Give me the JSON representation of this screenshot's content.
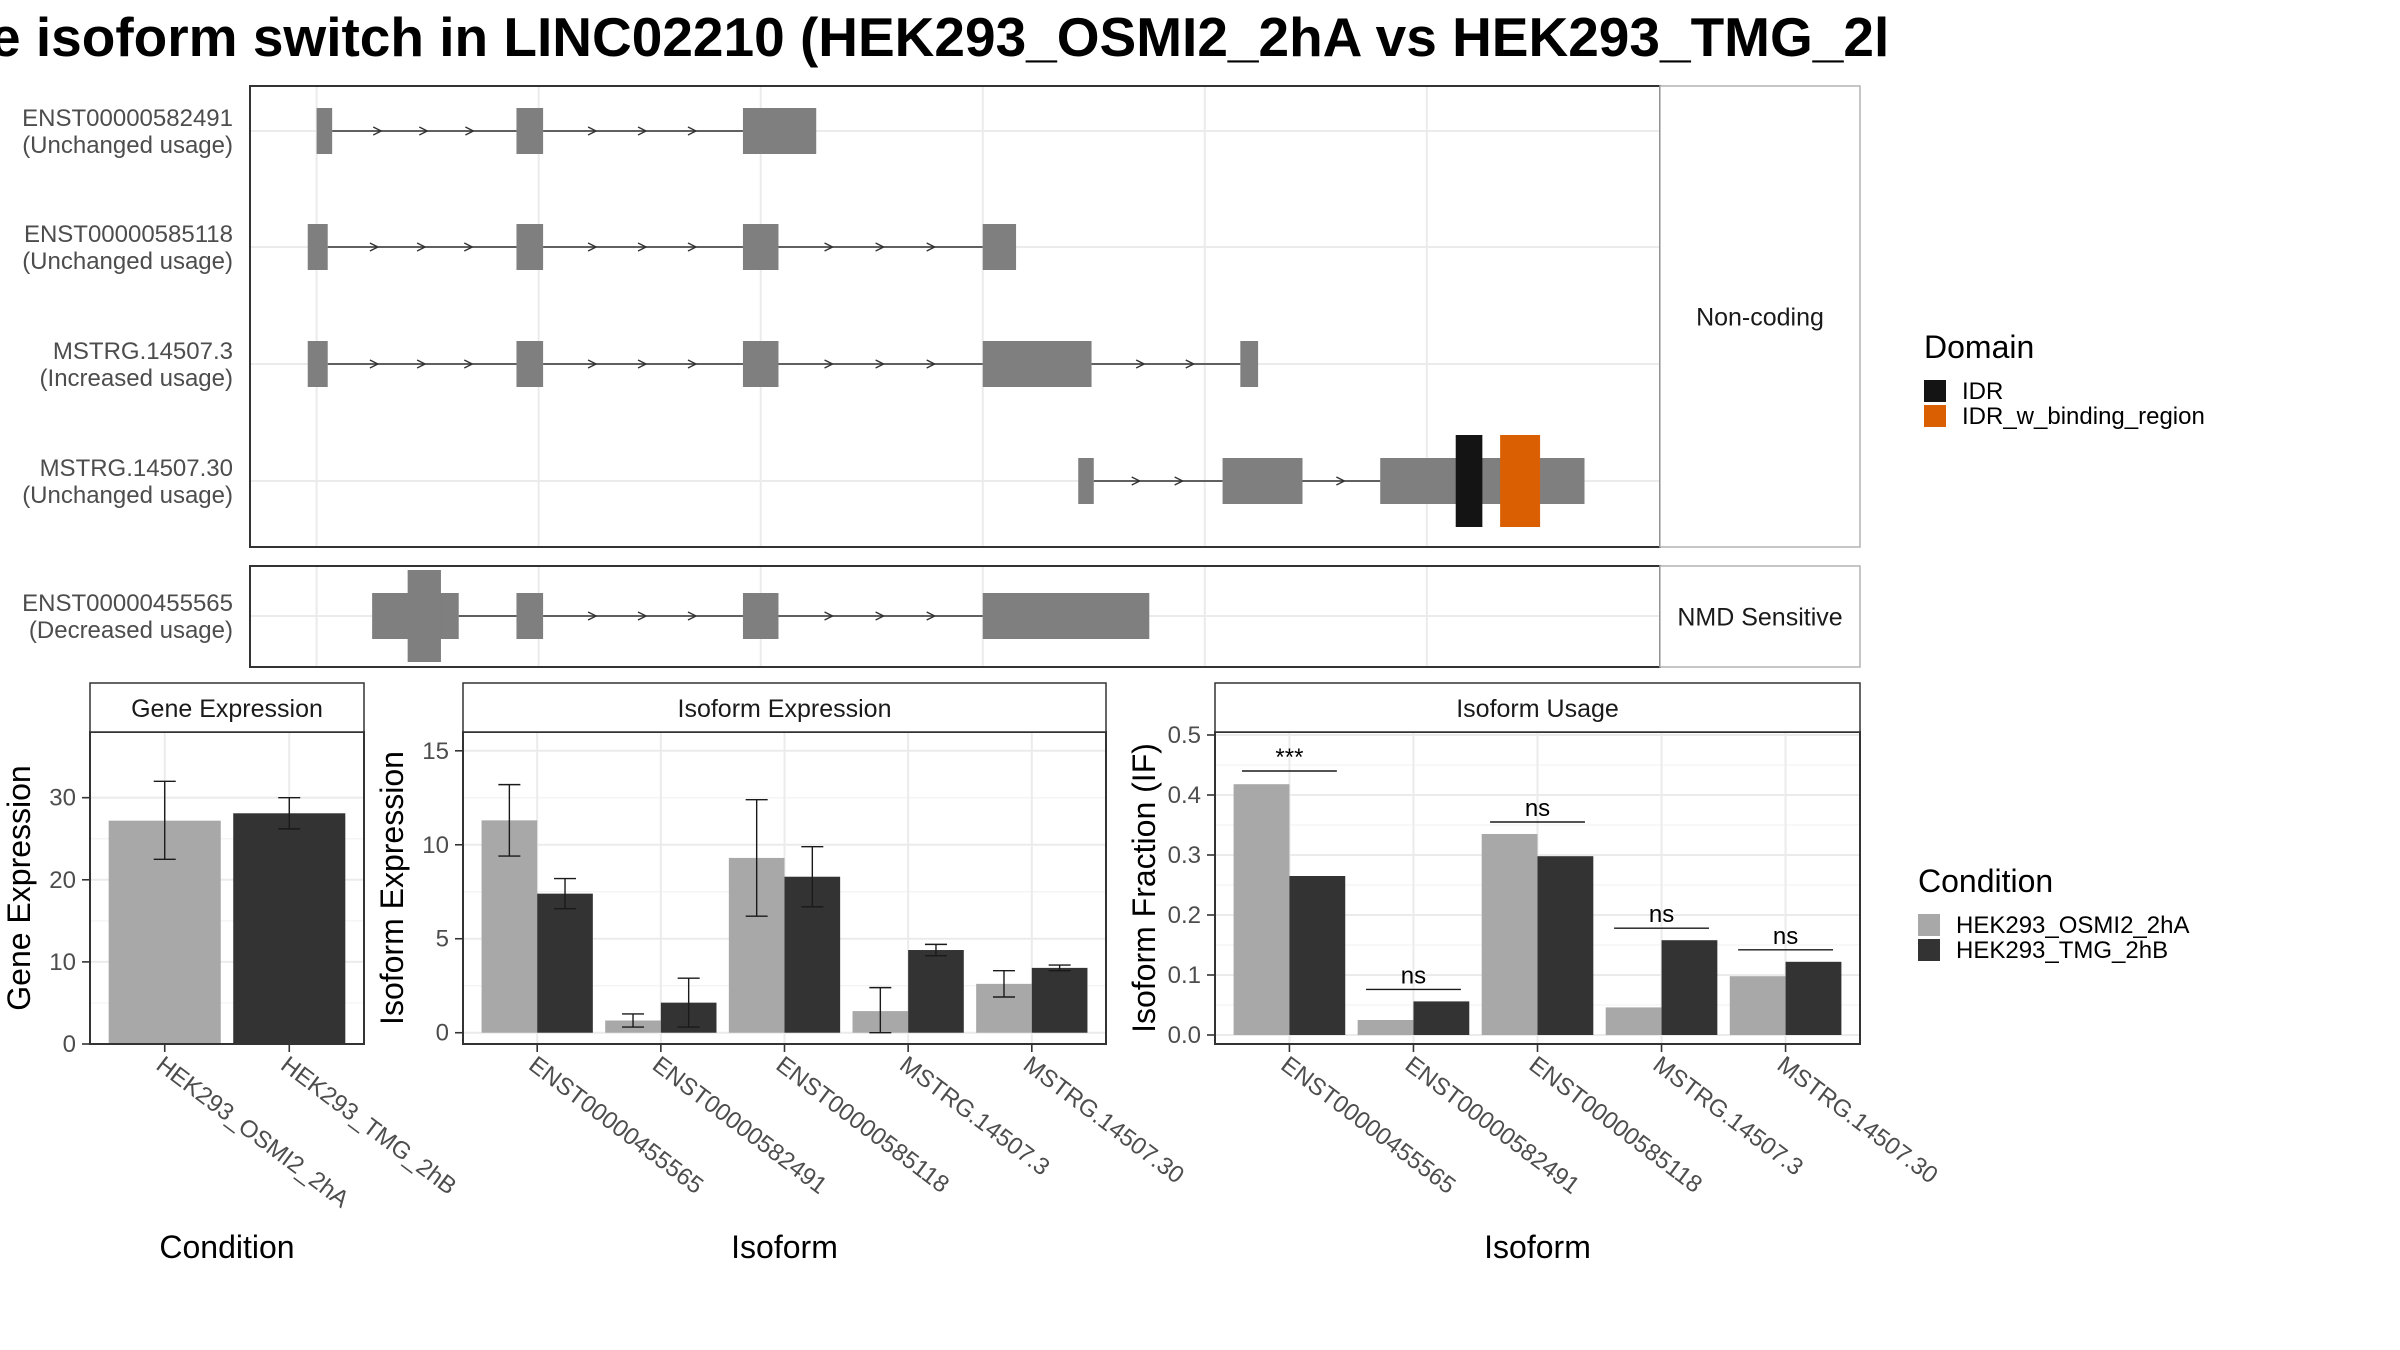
{
  "title": "e isoform switch in LINC02210 (HEK293_OSMI2_2hA vs HEK293_TMG_2l",
  "colors": {
    "condA": "#a8a8a8",
    "condB": "#333333",
    "exon": "#7f7f7f",
    "idr": "#141414",
    "idr_binding": "#d95f02",
    "grid": "#ebebeb",
    "strip_bg": "#ffffff",
    "panel_border": "#333333"
  },
  "structure": {
    "groups": [
      {
        "label": "Non-coding",
        "transcripts": [
          {
            "id": "ENST00000582491",
            "usage": "(Unchanged usage)",
            "exons": [
              [
                0.0,
                0.7
              ],
              [
                9.0,
                10.2
              ],
              [
                19.2,
                22.5
              ]
            ],
            "thick_exons": [],
            "domains": []
          },
          {
            "id": "ENST00000585118",
            "usage": "(Unchanged usage)",
            "exons": [
              [
                -0.4,
                0.5
              ],
              [
                9.0,
                10.2
              ],
              [
                19.2,
                20.8
              ],
              [
                30.0,
                31.5
              ]
            ],
            "thick_exons": [],
            "domains": []
          },
          {
            "id": "MSTRG.14507.3",
            "usage": "(Increased usage)",
            "exons": [
              [
                -0.4,
                0.5
              ],
              [
                9.0,
                10.2
              ],
              [
                19.2,
                20.8
              ],
              [
                30.0,
                34.9
              ],
              [
                41.6,
                42.4
              ]
            ],
            "thick_exons": [],
            "domains": []
          },
          {
            "id": "MSTRG.14507.30",
            "usage": "(Unchanged usage)",
            "exons": [
              [
                34.3,
                35.0
              ],
              [
                40.8,
                44.4
              ],
              [
                47.9,
                57.1
              ]
            ],
            "thick_exons": [],
            "domains": [
              {
                "name": "IDR",
                "start": 51.3,
                "end": 52.5
              },
              {
                "name": "IDR_w_binding_region",
                "start": 53.3,
                "end": 55.1
              }
            ]
          }
        ]
      },
      {
        "label": "NMD Sensitive",
        "transcripts": [
          {
            "id": "ENST00000455565",
            "usage": "(Decreased usage)",
            "exons": [
              [
                2.5,
                6.4
              ],
              [
                9.0,
                10.2
              ],
              [
                19.2,
                20.8
              ],
              [
                30.0,
                37.5
              ]
            ],
            "thick_exons": [
              [
                4.1,
                5.6
              ]
            ],
            "domains": []
          }
        ]
      }
    ],
    "legend": {
      "title": "Domain",
      "items": [
        {
          "label": "IDR",
          "color": "#141414"
        },
        {
          "label": "IDR_w_binding_region",
          "color": "#d95f02"
        }
      ]
    }
  },
  "chart_data": [
    {
      "type": "bar",
      "strip": "Gene Expression",
      "xlabel": "Condition",
      "ylabel": "Gene Expression",
      "ylim": [
        0,
        38
      ],
      "yticks": [
        0,
        10,
        20,
        30
      ],
      "categories": [
        "HEK293_OSMI2_2hA",
        "HEK293_TMG_2hB"
      ],
      "series": [
        {
          "name": "HEK293_OSMI2_2hA",
          "values": [
            27.2,
            null
          ],
          "err_low": [
            22.5,
            null
          ],
          "err_high": [
            32.0,
            null
          ]
        },
        {
          "name": "HEK293_TMG_2hB",
          "values": [
            null,
            28.1
          ],
          "err_low": [
            null,
            26.2
          ],
          "err_high": [
            null,
            30.0
          ]
        }
      ]
    },
    {
      "type": "bar",
      "strip": "Isoform Expression",
      "xlabel": "Isoform",
      "ylabel": "Isoform Expression",
      "ylim": [
        -0.6,
        16.0
      ],
      "yticks": [
        0,
        5,
        10,
        15
      ],
      "categories": [
        "ENST00000455565",
        "ENST00000582491",
        "ENST00000585118",
        "MSTRG.14507.3",
        "MSTRG.14507.30"
      ],
      "series": [
        {
          "name": "HEK293_OSMI2_2hA",
          "values": [
            11.3,
            0.65,
            9.3,
            1.15,
            2.6
          ],
          "err_low": [
            9.4,
            0.3,
            6.2,
            0.0,
            1.9
          ],
          "err_high": [
            13.2,
            1.0,
            12.4,
            2.4,
            3.3
          ]
        },
        {
          "name": "HEK293_TMG_2hB",
          "values": [
            7.4,
            1.6,
            8.3,
            4.4,
            3.45
          ],
          "err_low": [
            6.6,
            0.3,
            6.7,
            4.1,
            3.3
          ],
          "err_high": [
            8.2,
            2.9,
            9.9,
            4.7,
            3.6
          ]
        }
      ]
    },
    {
      "type": "bar",
      "strip": "Isoform Usage",
      "xlabel": "Isoform",
      "ylabel": "Isoform Fraction (IF)",
      "ylim": [
        -0.015,
        0.505
      ],
      "yticks": [
        0.0,
        0.1,
        0.2,
        0.3,
        0.4,
        0.5
      ],
      "ytick_labels": [
        "0.0",
        "0.1",
        "0.2",
        "0.3",
        "0.4",
        "0.5"
      ],
      "categories": [
        "ENST00000455565",
        "ENST00000582491",
        "ENST00000585118",
        "MSTRG.14507.3",
        "MSTRG.14507.30"
      ],
      "series": [
        {
          "name": "HEK293_OSMI2_2hA",
          "values": [
            0.418,
            0.025,
            0.335,
            0.046,
            0.098
          ]
        },
        {
          "name": "HEK293_TMG_2hB",
          "values": [
            0.265,
            0.056,
            0.298,
            0.158,
            0.122
          ]
        }
      ],
      "significance": [
        {
          "label": "***",
          "y": 0.44
        },
        {
          "label": "ns",
          "y": 0.076
        },
        {
          "label": "ns",
          "y": 0.355
        },
        {
          "label": "ns",
          "y": 0.178
        },
        {
          "label": "ns",
          "y": 0.142
        }
      ]
    }
  ],
  "condition_legend": {
    "title": "Condition",
    "items": [
      {
        "label": "HEK293_OSMI2_2hA",
        "color": "#a8a8a8"
      },
      {
        "label": "HEK293_TMG_2hB",
        "color": "#333333"
      }
    ]
  }
}
